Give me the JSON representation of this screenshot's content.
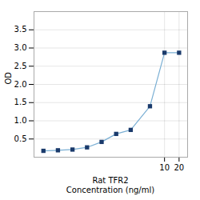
{
  "chart_data": {
    "type": "line",
    "x": [
      0.0313,
      0.0625,
      0.125,
      0.25,
      0.5,
      1,
      2,
      5,
      10,
      20
    ],
    "series": [
      {
        "type": "line",
        "color": "#7aafd4",
        "values": [
          0.175,
          0.19,
          0.21,
          0.27,
          0.42,
          0.64,
          0.75,
          1.4,
          2.87,
          2.87
        ]
      },
      {
        "type": "scatter",
        "color": "#1a3a6b",
        "marker": "square",
        "values": [
          0.175,
          0.19,
          0.21,
          0.27,
          0.42,
          0.64,
          0.75,
          1.4,
          2.87,
          2.87
        ]
      }
    ],
    "xlabel": "Rat TFR2\nConcentration (ng/ml)",
    "ylabel": "OD",
    "log": "x",
    "xlim": [
      0.02,
      30
    ],
    "ylim": [
      0,
      4.0
    ],
    "xticks": [
      10,
      20
    ],
    "yticks": [
      0.5,
      {
        "value": 1.0,
        "label": "1.0"
      },
      1.5,
      {
        "value": 2.0,
        "label": "2.0"
      },
      2.5,
      {
        "value": 3.0,
        "label": "3.0"
      },
      3.5
    ],
    "grid": true
  }
}
